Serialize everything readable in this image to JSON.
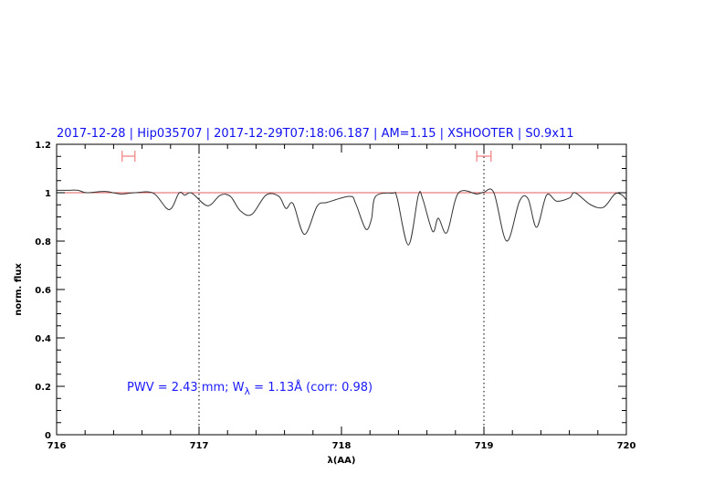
{
  "chart_data": {
    "type": "line",
    "title": "2017-12-28 | Hip035707 | 2017-12-29T07:18:06.187 | AM=1.15 | XSHOOTER | S0.9x11",
    "xlabel": "λ(AA)",
    "ylabel": "norm. flux",
    "xlim": [
      716,
      720
    ],
    "ylim": [
      0,
      1.2
    ],
    "xticks": [
      "716",
      "717",
      "718",
      "719",
      "720"
    ],
    "yticks": [
      "0",
      "0.2",
      "0.4",
      "0.6",
      "0.8",
      "1",
      "1.2"
    ],
    "annotation": "PWV = 2.43 mm; W",
    "annotation_sub": "λ",
    "annotation_tail": " = 1.13Å (corr: 0.98)",
    "reference_line": 1.0,
    "vertical_dotted_lines": [
      717,
      719
    ],
    "fit_ranges": [
      [
        716.46,
        716.55
      ],
      [
        718.95,
        719.05
      ]
    ],
    "colors": {
      "title": "#1010f0",
      "spectrum": "#333333",
      "reference": "#e06060",
      "ranges": "#f08080"
    },
    "series": [
      {
        "x": [
          716.0,
          716.08,
          716.15,
          716.21,
          716.34,
          716.45,
          716.55,
          716.68,
          716.79,
          716.86,
          716.9,
          716.95,
          717.06,
          717.15,
          717.22,
          717.29,
          717.37,
          717.47,
          717.56,
          717.61,
          717.66,
          717.74,
          717.83,
          717.9,
          718.06,
          718.1,
          718.17,
          718.21,
          718.24,
          718.36,
          718.39,
          718.47,
          718.54,
          718.57,
          718.64,
          718.68,
          718.74,
          718.82,
          718.95,
          719.0,
          719.07,
          719.16,
          719.25,
          719.31,
          719.37,
          719.44,
          719.51,
          719.6,
          719.64,
          719.75,
          719.84,
          719.92,
          719.97,
          720.0
        ],
        "y": [
          1.01,
          1.01,
          1.01,
          1.0,
          1.005,
          0.995,
          1.0,
          0.998,
          0.93,
          0.999,
          0.99,
          0.998,
          0.946,
          0.99,
          0.985,
          0.925,
          0.91,
          0.99,
          0.985,
          0.935,
          0.955,
          0.828,
          0.945,
          0.96,
          0.985,
          0.955,
          0.85,
          0.89,
          0.985,
          0.998,
          0.98,
          0.784,
          0.99,
          0.975,
          0.84,
          0.895,
          0.835,
          0.998,
          0.995,
          1.002,
          1.0,
          0.8,
          0.965,
          0.975,
          0.857,
          0.99,
          0.965,
          0.978,
          1.0,
          0.95,
          0.94,
          0.995,
          0.99,
          0.97
        ]
      }
    ]
  }
}
